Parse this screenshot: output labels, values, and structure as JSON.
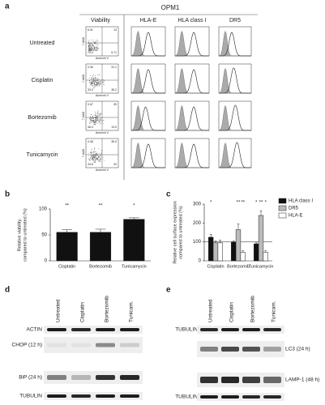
{
  "panel_a": {
    "label": "a",
    "title": "OPM1",
    "columns": [
      "Viability",
      "HLA-E",
      "HLA class I",
      "DR5"
    ],
    "rows": [
      {
        "name": "Untreated",
        "quadrants": [
          "6.01",
          "13",
          "75.3",
          "5.71"
        ]
      },
      {
        "name": "Cisplatin",
        "quadrants": [
          "0.36",
          "31.1",
          "33.3",
          "35.2"
        ]
      },
      {
        "name": "Bortezomib",
        "quadrants": [
          "0.67",
          "39",
          "46.4",
          "13.9"
        ]
      },
      {
        "name": "Tunicamycin",
        "quadrants": [
          "0.48",
          "35.9",
          "43.6",
          "20"
        ]
      }
    ],
    "y_axis": "7-AAD",
    "x_axis": "Annexin V"
  },
  "chart_data": [
    {
      "label": "b",
      "type": "bar",
      "categories": [
        "Cisplatin",
        "Bortezomib",
        "Tunicamycin"
      ],
      "series": [
        {
          "name": null,
          "color": "#111111",
          "values": [
            55,
            55,
            80
          ],
          "errors": [
            5,
            6,
            3
          ],
          "annotations": [
            "**",
            "**",
            "*"
          ]
        }
      ],
      "ylabel": [
        "Relative viability,",
        "compared to untreated (%)"
      ],
      "ylim": [
        0,
        100
      ],
      "yticks": [
        0,
        50,
        100
      ]
    },
    {
      "label": "c",
      "type": "bar",
      "categories": [
        "Cisplatin",
        "Bortezomib",
        "Tunicamycin"
      ],
      "series": [
        {
          "name": "HLA class I",
          "color": "#111111",
          "values": [
            125,
            100,
            90
          ],
          "errors": [
            15,
            5,
            5
          ],
          "annotations": [
            "*",
            null,
            "*"
          ]
        },
        {
          "name": "DR5",
          "color": "#bbbbbb",
          "values": [
            95,
            165,
            240
          ],
          "errors": [
            10,
            30,
            25
          ],
          "annotations": [
            null,
            "**",
            "**"
          ]
        },
        {
          "name": "HLA-E",
          "color": "#ffffff",
          "values": [
            95,
            45,
            45
          ],
          "errors": [
            15,
            8,
            8
          ],
          "annotations": [
            null,
            "**",
            "*"
          ]
        }
      ],
      "ylabel": [
        "Relative cell surface expression",
        "compared to untreated (%)"
      ],
      "ylim": [
        0,
        300
      ],
      "yticks": [
        0,
        100,
        200,
        300
      ],
      "hline": 100
    }
  ],
  "panel_d": {
    "label": "d",
    "lanes": [
      "Untreated",
      "Cisplatin",
      "Bortezomib",
      "Tunicam."
    ],
    "blots": [
      "ACTIN",
      "CHOP (12 h)",
      "BiP (24 h)",
      "TUBULIN"
    ]
  },
  "panel_e": {
    "label": "e",
    "lanes": [
      "Untreated",
      "Cisplatin",
      "Bortezomib",
      "Tunicam."
    ],
    "blots": [
      "TUBULIN",
      "LC3 (24 h)",
      "LAMP-1 (48 h)",
      "TUBULIN"
    ]
  }
}
